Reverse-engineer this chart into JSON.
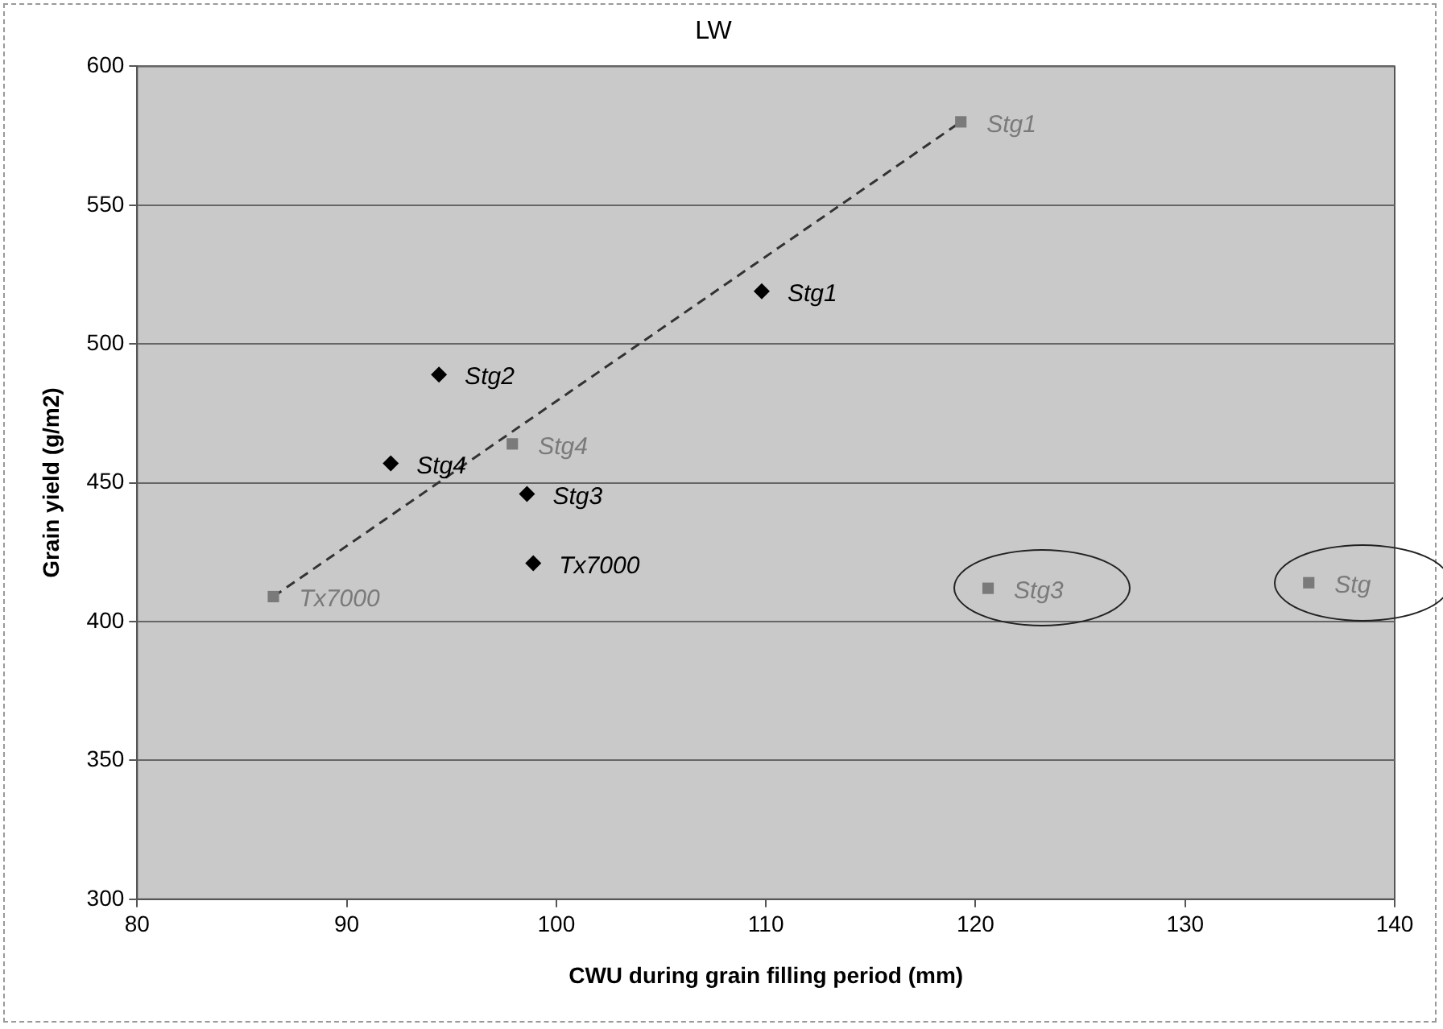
{
  "chart_data": {
    "type": "scatter",
    "title": "LW",
    "xlabel": "CWU during grain filling period (mm)",
    "ylabel": "Grain yield (g/m2)",
    "xlim": [
      80,
      140
    ],
    "xticks": [
      80,
      90,
      100,
      110,
      120,
      130,
      140
    ],
    "ylim": [
      300,
      600
    ],
    "yticks": [
      300,
      350,
      400,
      450,
      500,
      550,
      600
    ],
    "grid": "y",
    "legend": false,
    "series": [
      {
        "color": "#000000",
        "marker": "diamond",
        "x": [
          94.4,
          92.1,
          98.6,
          98.9,
          109.8
        ],
        "values": [
          489,
          457,
          446,
          421,
          519
        ],
        "value_labels": [
          "Stg2",
          "Stg4",
          "Stg3",
          "Tx7000",
          "Stg1"
        ]
      },
      {
        "color": "#7a7a7a",
        "marker": "square",
        "x": [
          86.5,
          97.9,
          119.3,
          120.6,
          135.9
        ],
        "values": [
          409,
          464,
          580,
          412,
          414
        ],
        "value_labels": [
          "Tx7000",
          "Stg4",
          "Stg1",
          "Stg3",
          "Stg"
        ]
      },
      {
        "type": "line",
        "color": "#333333",
        "marker": "none",
        "line_style": "dashed",
        "x": [
          86.5,
          119.3
        ],
        "values": [
          409,
          580
        ]
      }
    ]
  }
}
